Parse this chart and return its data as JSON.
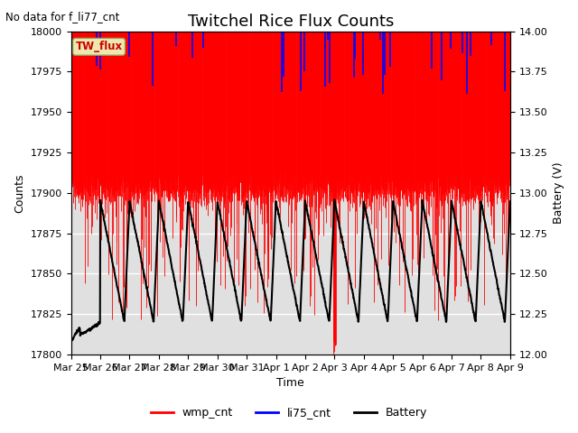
{
  "title": "Twitchel Rice Flux Counts",
  "xlabel": "Time",
  "ylabel_left": "Counts",
  "ylabel_right": "Battery (V)",
  "annotation": "No data for f_li77_cnt",
  "legend_box_label": "TW_flux",
  "ylim_left": [
    17800,
    18000
  ],
  "ylim_right": [
    12.0,
    14.0
  ],
  "xtick_labels": [
    "Mar 25",
    "Mar 26",
    "Mar 27",
    "Mar 28",
    "Mar 29",
    "Mar 30",
    "Mar 31",
    "Apr 1",
    "Apr 2",
    "Apr 3",
    "Apr 4",
    "Apr 5",
    "Apr 6",
    "Apr 7",
    "Apr 8",
    "Apr 9"
  ],
  "background_color": "#ffffff",
  "plot_bg_color": "#e0e0e0",
  "grid_color": "#ffffff",
  "wmp_color": "#ff0000",
  "li75_color": "#0000ff",
  "battery_color": "#000000",
  "legend_items": [
    "wmp_cnt",
    "li75_cnt",
    "Battery"
  ],
  "legend_colors": [
    "#ff0000",
    "#0000ff",
    "#000000"
  ],
  "title_fontsize": 13,
  "axis_fontsize": 9,
  "tick_fontsize": 8
}
